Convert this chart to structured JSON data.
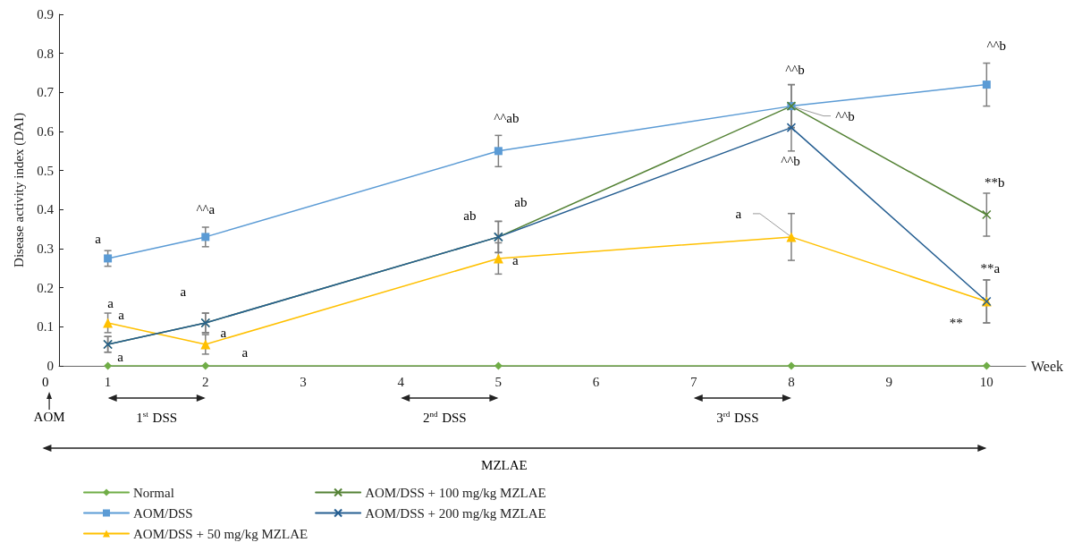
{
  "chart_data": {
    "type": "line",
    "xlabel": "Week",
    "ylabel": "Disease activity index (DAI)",
    "x": [
      1,
      2,
      5,
      8,
      10
    ],
    "xlim": [
      0.5,
      10.4
    ],
    "xticks": [
      1,
      2,
      3,
      4,
      5,
      6,
      7,
      8,
      9,
      10
    ],
    "ylim": [
      0,
      0.9
    ],
    "yticks": [
      0,
      0.1,
      0.2,
      0.3,
      0.4,
      0.5,
      0.6,
      0.7,
      0.8,
      0.9
    ],
    "grid": false,
    "legend": "bottom",
    "line_style": "solid",
    "series": [
      {
        "name": "Normal",
        "color": "#70ad47",
        "marker": "diamond",
        "values": [
          0,
          0,
          0,
          0,
          0
        ]
      },
      {
        "name": "AOM/DSS",
        "color": "#5b9bd5",
        "marker": "square",
        "values": [
          0.275,
          0.33,
          0.55,
          0.665,
          0.72
        ],
        "errors": [
          0.02,
          0.025,
          0.04,
          0.055,
          0.055
        ]
      },
      {
        "name": "AOM/DSS + 50 mg/kg MZLAE",
        "color": "#ffc000",
        "marker": "triangle",
        "values": [
          0.11,
          0.055,
          0.275,
          0.33,
          0.165
        ],
        "errors": [
          0.025,
          0.025,
          0.04,
          0.06,
          0.055
        ]
      },
      {
        "name": "AOM/DSS + 100 mg/kg MZLAE",
        "color": "#548235",
        "marker": "cross",
        "values": [
          0.055,
          0.11,
          0.33,
          0.665,
          0.387
        ],
        "errors": [
          0.02,
          0.025,
          0.04,
          0.055,
          0.055
        ]
      },
      {
        "name": "AOM/DSS + 200 mg/kg MZLAE",
        "color": "#255e91",
        "marker": "cross",
        "values": [
          0.055,
          0.11,
          0.33,
          0.61,
          0.165
        ],
        "errors": [
          0.02,
          0.025,
          0.04,
          0.06,
          0.055
        ]
      }
    ],
    "annotations": [
      {
        "text": "a",
        "x": 1,
        "y": 0.275
      },
      {
        "text": "a",
        "x": 1,
        "y": 0.11
      },
      {
        "text": "a",
        "x": 1,
        "y": 0.055
      },
      {
        "text": "a",
        "x": 1,
        "y": 0
      },
      {
        "text": "^^a",
        "x": 2,
        "y": 0.33
      },
      {
        "text": "a",
        "x": 2,
        "y": 0.11
      },
      {
        "text": "a",
        "x": 2,
        "y": 0.055
      },
      {
        "text": "a",
        "x": 2,
        "y": 0
      },
      {
        "text": "^^ab",
        "x": 5,
        "y": 0.55
      },
      {
        "text": "ab",
        "x": 5,
        "y": 0.33
      },
      {
        "text": "ab",
        "x": 5,
        "y": 0.33
      },
      {
        "text": "a",
        "x": 5,
        "y": 0.275
      },
      {
        "text": "^^b",
        "x": 8,
        "y": 0.665
      },
      {
        "text": "^^b",
        "x": 8,
        "y": 0.665
      },
      {
        "text": "^^b",
        "x": 8,
        "y": 0.61
      },
      {
        "text": "a",
        "x": 8,
        "y": 0.33
      },
      {
        "text": "^^b",
        "x": 10,
        "y": 0.72
      },
      {
        "text": "**b",
        "x": 10,
        "y": 0.387
      },
      {
        "text": "**a",
        "x": 10,
        "y": 0.165
      },
      {
        "text": "**",
        "x": 10,
        "y": 0.165
      },
      "0",
      "AOM",
      "1$^{st}$ DSS",
      "2$^{nd}$ DSS",
      "3$^{rd}$ DSS",
      "MZLAE"
    ]
  }
}
